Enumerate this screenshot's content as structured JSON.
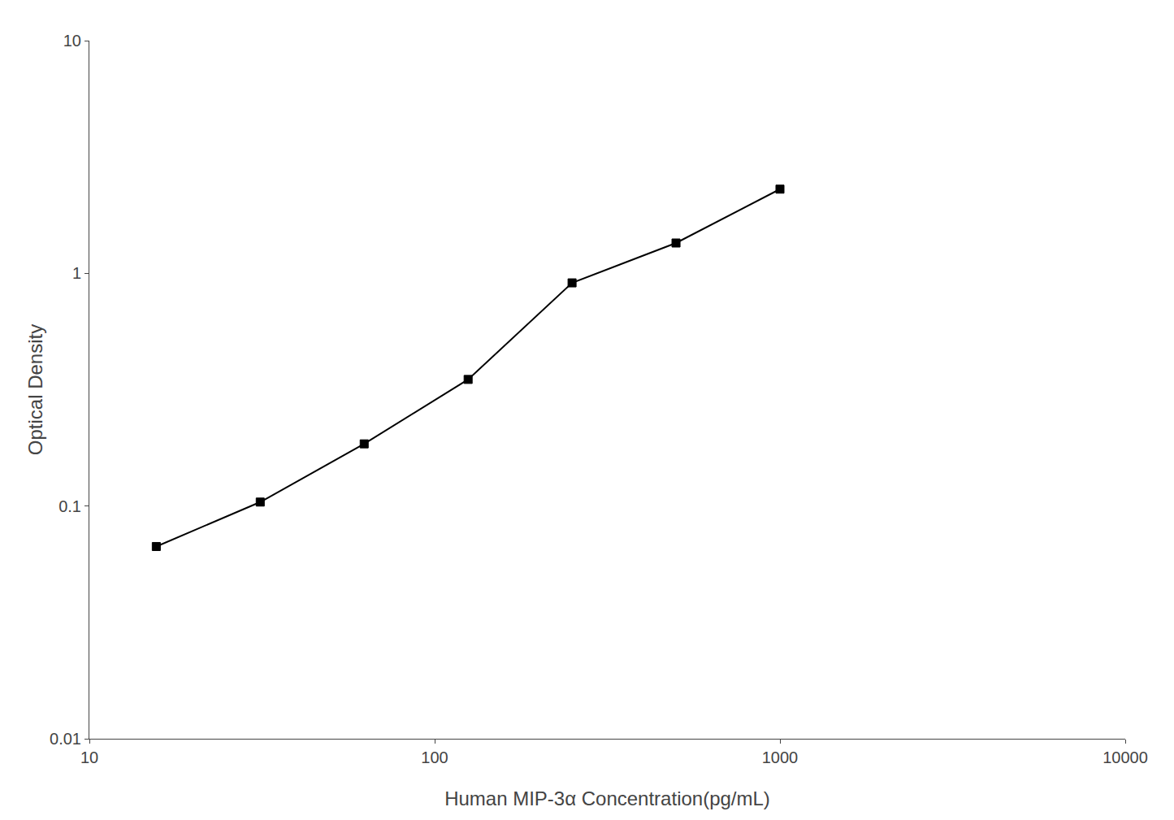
{
  "chart_data": {
    "type": "line",
    "xlabel": "Human MIP-3α Concentration(pg/mL)",
    "ylabel": "Optical Density",
    "x": [
      15.625,
      31.25,
      62.5,
      125,
      250,
      500,
      1000
    ],
    "values": [
      0.067,
      0.104,
      0.185,
      0.35,
      0.91,
      1.35,
      2.3
    ],
    "xlim": [
      10,
      10000
    ],
    "ylim": [
      0.01,
      10
    ],
    "xticks": [
      10,
      100,
      1000,
      10000
    ],
    "yticks": [
      0.01,
      0.1,
      1,
      10
    ],
    "log": true,
    "grid": false,
    "color": "#000000",
    "marker": "square",
    "line_style": "solid"
  }
}
